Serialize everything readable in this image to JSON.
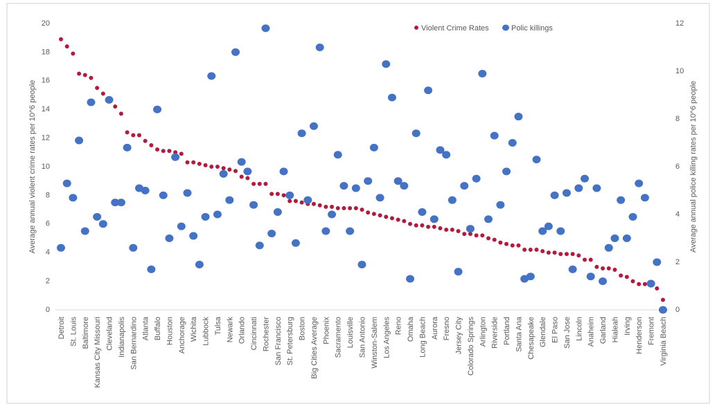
{
  "chart_data": {
    "type": "scatter",
    "y_label": "Average annual violent crime rates per 10^6 people",
    "y2_label": "Average annual police killing rates per 10^6 people",
    "categories": [
      "Detroit",
      null,
      "St. Louis",
      null,
      "Baltimore",
      null,
      "Kansas City Missouri",
      null,
      "Cleveland",
      null,
      "Indianapolis",
      null,
      "San Bernardino",
      null,
      "Atlanta",
      null,
      "Buffalo",
      null,
      "Houston",
      null,
      "Anchorage",
      null,
      "Wichita",
      null,
      "Lubbock",
      null,
      "Tulsa",
      null,
      "Newark",
      null,
      "Orlando",
      null,
      "Cincinnati",
      null,
      "Rochester",
      null,
      "San Francisco",
      null,
      "St. Petersburg",
      null,
      "Boston",
      null,
      "Big Cities Average",
      null,
      "Phoenix",
      null,
      "Sacramento",
      null,
      "Louisville",
      null,
      "San Antonio",
      null,
      "Winston-Salem",
      null,
      "Los Angeles",
      null,
      "Reno",
      null,
      "Omaha",
      null,
      "Long Beach",
      null,
      "Aurora",
      null,
      "Fresno",
      null,
      "Jersey City",
      null,
      "Colorado Springs",
      null,
      "Arlington",
      null,
      "Riverside",
      null,
      "Portland",
      null,
      "Santa Ana",
      null,
      "Chesapeake",
      null,
      "Glendale",
      null,
      "El Paso",
      null,
      "San Jose",
      null,
      "Lincoln",
      null,
      "Anaheim",
      null,
      "Garland",
      null,
      "Hialeah",
      null,
      "Irving",
      null,
      "Henderson",
      null,
      "Fremont",
      null,
      "Virginia Beach"
    ],
    "series": [
      {
        "name": "Violent Crime Rates",
        "color": "#b31b3e",
        "values": [
          18.9,
          18.4,
          17.9,
          16.5,
          16.4,
          16.2,
          15.5,
          15.1,
          14.6,
          14.2,
          13.7,
          12.4,
          12.2,
          12.2,
          11.8,
          11.5,
          11.2,
          11.1,
          11.1,
          11.0,
          10.9,
          10.3,
          10.3,
          10.2,
          10.1,
          10.0,
          10.0,
          9.9,
          9.8,
          9.7,
          9.3,
          9.2,
          8.8,
          8.8,
          8.8,
          8.1,
          8.1,
          8.0,
          7.6,
          7.6,
          7.5,
          7.4,
          7.4,
          7.3,
          7.2,
          7.2,
          7.1,
          7.1,
          7.1,
          7.1,
          7.0,
          6.8,
          6.7,
          6.6,
          6.5,
          6.4,
          6.3,
          6.2,
          6.0,
          5.9,
          5.9,
          5.8,
          5.8,
          5.7,
          5.6,
          5.6,
          5.5,
          5.3,
          5.3,
          5.2,
          5.2,
          5.0,
          4.9,
          4.7,
          4.6,
          4.5,
          4.5,
          4.2,
          4.2,
          4.2,
          4.1,
          4.0,
          4.0,
          3.9,
          3.9,
          3.9,
          3.8,
          3.5,
          3.5,
          3.0,
          2.9,
          2.9,
          2.8,
          2.4,
          2.3,
          2.0,
          1.8,
          1.8,
          1.7,
          1.5,
          0.7
        ]
      },
      {
        "name": "Polic killings",
        "color": "#4472c4",
        "axis": "y2",
        "values": [
          2.6,
          5.3,
          4.7,
          7.1,
          3.3,
          8.7,
          3.9,
          3.6,
          8.8,
          4.5,
          4.5,
          6.8,
          2.6,
          5.1,
          5.0,
          1.7,
          8.4,
          4.8,
          3.0,
          6.4,
          3.5,
          4.9,
          3.1,
          1.9,
          3.9,
          9.8,
          4.0,
          5.7,
          4.6,
          10.8,
          6.2,
          5.8,
          4.4,
          2.7,
          11.8,
          3.2,
          4.1,
          5.8,
          4.8,
          2.8,
          7.4,
          4.6,
          7.7,
          11.0,
          3.3,
          4.0,
          6.5,
          5.2,
          3.3,
          5.1,
          1.9,
          5.4,
          6.8,
          4.7,
          10.3,
          8.9,
          5.4,
          5.2,
          1.3,
          7.4,
          4.1,
          9.2,
          3.8,
          6.7,
          6.5,
          4.6,
          1.6,
          5.2,
          3.4,
          5.5,
          9.9,
          3.8,
          7.3,
          4.4,
          5.8,
          7.0,
          8.1,
          1.3,
          1.4,
          6.3,
          3.3,
          3.5,
          4.8,
          3.3,
          4.9,
          1.7,
          5.1,
          5.5,
          1.4,
          5.1,
          1.2,
          2.6,
          3.0,
          4.6,
          3.0,
          3.9,
          5.3,
          4.7,
          1.1,
          2.0,
          0
        ]
      }
    ],
    "ylim": [
      0,
      20
    ],
    "yticks": [
      0,
      2,
      4,
      6,
      8,
      10,
      12,
      14,
      16,
      18,
      20
    ],
    "y2lim": [
      0,
      12
    ],
    "y2ticks": [
      0,
      2,
      4,
      6,
      8,
      10,
      12
    ]
  }
}
